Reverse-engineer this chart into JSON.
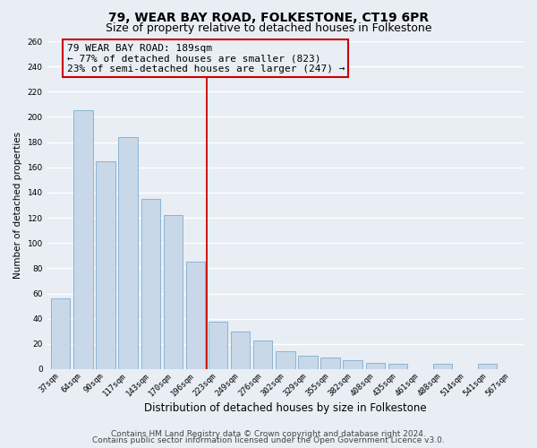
{
  "title": "79, WEAR BAY ROAD, FOLKESTONE, CT19 6PR",
  "subtitle": "Size of property relative to detached houses in Folkestone",
  "xlabel": "Distribution of detached houses by size in Folkestone",
  "ylabel": "Number of detached properties",
  "bar_labels": [
    "37sqm",
    "64sqm",
    "90sqm",
    "117sqm",
    "143sqm",
    "170sqm",
    "196sqm",
    "223sqm",
    "249sqm",
    "276sqm",
    "302sqm",
    "329sqm",
    "355sqm",
    "382sqm",
    "408sqm",
    "435sqm",
    "461sqm",
    "488sqm",
    "514sqm",
    "541sqm",
    "567sqm"
  ],
  "bar_values": [
    56,
    205,
    165,
    184,
    135,
    122,
    85,
    38,
    30,
    23,
    14,
    11,
    9,
    7,
    5,
    4,
    0,
    4,
    0,
    4,
    0
  ],
  "bar_color": "#c8d8e8",
  "bar_edge_color": "#8ab4d4",
  "vline_x": 6.5,
  "vline_color": "#cc0000",
  "annotation_line1": "79 WEAR BAY ROAD: 189sqm",
  "annotation_line2": "← 77% of detached houses are smaller (823)",
  "annotation_line3": "23% of semi-detached houses are larger (247) →",
  "ylim": [
    0,
    260
  ],
  "xlim": [
    -0.6,
    20.6
  ],
  "yticks": [
    0,
    20,
    40,
    60,
    80,
    100,
    120,
    140,
    160,
    180,
    200,
    220,
    240,
    260
  ],
  "footer_line1": "Contains HM Land Registry data © Crown copyright and database right 2024.",
  "footer_line2": "Contains public sector information licensed under the Open Government Licence v3.0.",
  "bg_color": "#e8eef4",
  "plot_bg_color": "#e8eef4",
  "grid_color": "#ffffff",
  "title_fontsize": 10,
  "subtitle_fontsize": 9,
  "xlabel_fontsize": 8.5,
  "ylabel_fontsize": 7.5,
  "tick_fontsize": 6.5,
  "annotation_fontsize": 8,
  "footer_fontsize": 6.5
}
